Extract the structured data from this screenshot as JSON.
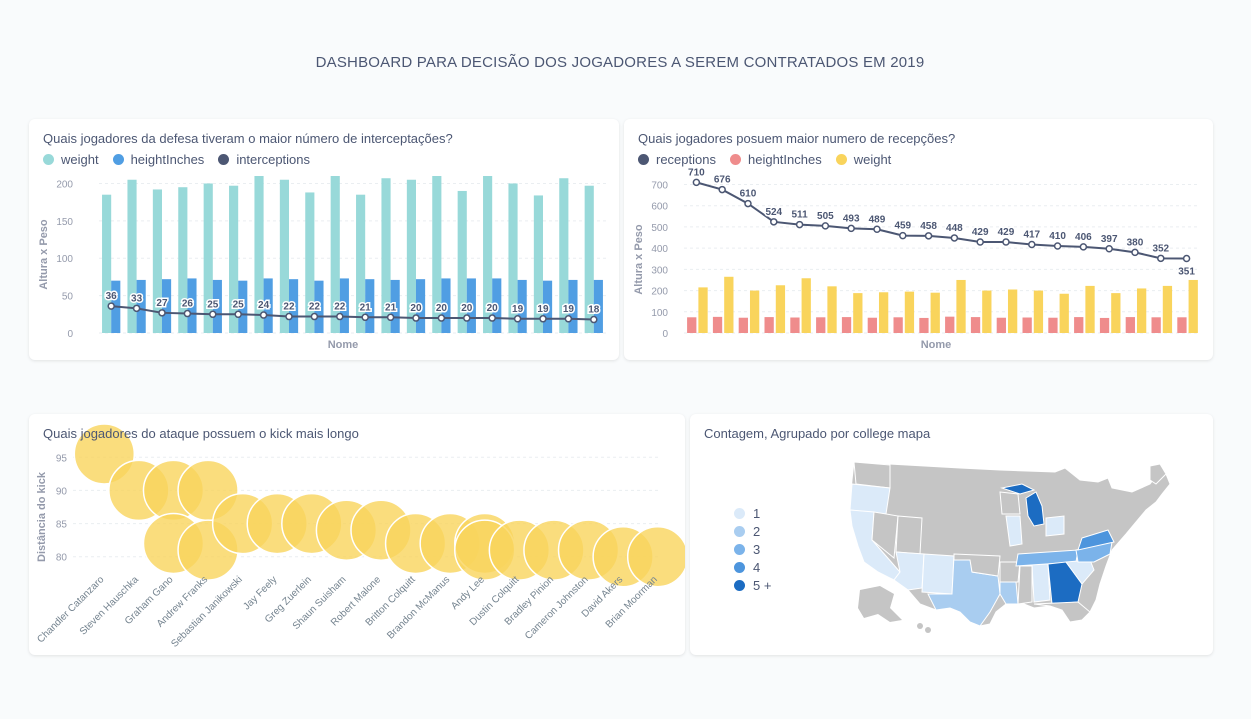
{
  "dashboard": {
    "title": "DASHBOARD PARA DECISÃO DOS JOGADORES A SEREM CONTRATADOS EM 2019"
  },
  "colors": {
    "teal": "#98d9d9",
    "blue": "#509ee3",
    "navy": "#4c5773",
    "pink": "#ef8c8c",
    "yellow": "#f9d45c",
    "grid": "#eaeef1",
    "axis": "#949aab"
  },
  "chart_data": [
    {
      "type": "bar",
      "title": "Quais jogadores da defesa tiveram o maior número de interceptações?",
      "xlabel": "Nome",
      "ylabel": "Altura x Peso",
      "ylim": [
        0,
        210
      ],
      "yticks": [
        0,
        50,
        100,
        150,
        200
      ],
      "grid": true,
      "legend_position": "top-left",
      "series": [
        {
          "name": "weight",
          "color": "#98d9d9",
          "values": [
            185,
            205,
            192,
            195,
            200,
            197,
            210,
            205,
            188,
            210,
            185,
            207,
            205,
            210,
            190,
            210,
            200,
            184,
            207,
            197
          ]
        },
        {
          "name": "heightInches",
          "color": "#509ee3",
          "values": [
            70,
            71,
            72,
            73,
            71,
            70,
            73,
            72,
            70,
            73,
            72,
            71,
            72,
            73,
            73,
            73,
            71,
            70,
            71,
            71
          ]
        },
        {
          "name": "interceptions",
          "color": "#4c5773",
          "values": [
            36,
            33,
            27,
            26,
            25,
            25,
            24,
            22,
            22,
            22,
            21,
            21,
            20,
            20,
            20,
            20,
            19,
            19,
            19,
            18
          ]
        }
      ]
    },
    {
      "type": "bar",
      "title": "Quais jogadores posuem maior numero de recepções?",
      "xlabel": "Nome",
      "ylabel": "Altura x Peso",
      "ylim": [
        0,
        740
      ],
      "yticks": [
        0,
        100,
        200,
        300,
        400,
        500,
        600,
        700
      ],
      "grid": true,
      "legend_position": "top-left",
      "series": [
        {
          "name": "receptions",
          "color": "#4c5773",
          "values": [
            710,
            676,
            610,
            524,
            511,
            505,
            493,
            489,
            459,
            458,
            448,
            429,
            429,
            417,
            410,
            406,
            397,
            380,
            352,
            351
          ]
        },
        {
          "name": "heightInches",
          "color": "#ef8c8c",
          "values": [
            74,
            76,
            72,
            75,
            73,
            74,
            75,
            72,
            74,
            71,
            77,
            75,
            72,
            73,
            72,
            75,
            71,
            75,
            74,
            74
          ]
        },
        {
          "name": "weight",
          "color": "#f9d45c",
          "values": [
            215,
            265,
            200,
            225,
            258,
            220,
            188,
            192,
            195,
            190,
            250,
            200,
            205,
            200,
            185,
            222,
            188,
            210,
            222,
            250
          ]
        }
      ]
    },
    {
      "type": "scatter",
      "title": "Quais jogadores do ataque possuem o kick mais longo",
      "xlabel": "",
      "ylabel": "Distância do kick",
      "ylim": [
        78,
        97
      ],
      "yticks": [
        80,
        85,
        90,
        95
      ],
      "grid": true,
      "categories": [
        "Chandler Catanzaro",
        "Steven Hauschka",
        "Graham Gano",
        "Andrew Franks",
        "Sebastian Janikowski",
        "Jay Feely",
        "Greg Zuerlein",
        "Shaun Suisham",
        "Robert Malone",
        "Britton Colquitt",
        "Brandon McManus",
        "Andy Lee",
        "Dustin Colquitt",
        "Bradley Pinion",
        "Cameron Johnston",
        "David Akers",
        "Brian Moorman"
      ],
      "points": [
        {
          "x": "Chandler Catanzaro",
          "y": 95.5
        },
        {
          "x": "Steven Hauschka",
          "y": 90
        },
        {
          "x": "Graham Gano",
          "y": 90
        },
        {
          "x": "Graham Gano",
          "y": 82
        },
        {
          "x": "Andrew Franks",
          "y": 90
        },
        {
          "x": "Andrew Franks",
          "y": 81
        },
        {
          "x": "Sebastian Janikowski",
          "y": 85
        },
        {
          "x": "Jay Feely",
          "y": 85
        },
        {
          "x": "Greg Zuerlein",
          "y": 85
        },
        {
          "x": "Shaun Suisham",
          "y": 84
        },
        {
          "x": "Robert Malone",
          "y": 84
        },
        {
          "x": "Britton Colquitt",
          "y": 82
        },
        {
          "x": "Brandon McManus",
          "y": 82
        },
        {
          "x": "Andy Lee",
          "y": 82
        },
        {
          "x": "Andy Lee",
          "y": 81
        },
        {
          "x": "Dustin Colquitt",
          "y": 81
        },
        {
          "x": "Bradley Pinion",
          "y": 81
        },
        {
          "x": "Cameron Johnston",
          "y": 81
        },
        {
          "x": "David Akers",
          "y": 80
        },
        {
          "x": "Brian Moorman",
          "y": 80
        }
      ],
      "color": "#f9d45c"
    }
  ],
  "map": {
    "title": "Contagem, Agrupado por college mapa",
    "legend": [
      {
        "label": "1",
        "color": "#dbeaf9"
      },
      {
        "label": "2",
        "color": "#a9cdf0"
      },
      {
        "label": "3",
        "color": "#7bb3ea"
      },
      {
        "label": "4",
        "color": "#4d95dd"
      },
      {
        "label": "5 +",
        "color": "#1c6cc2"
      }
    ]
  }
}
